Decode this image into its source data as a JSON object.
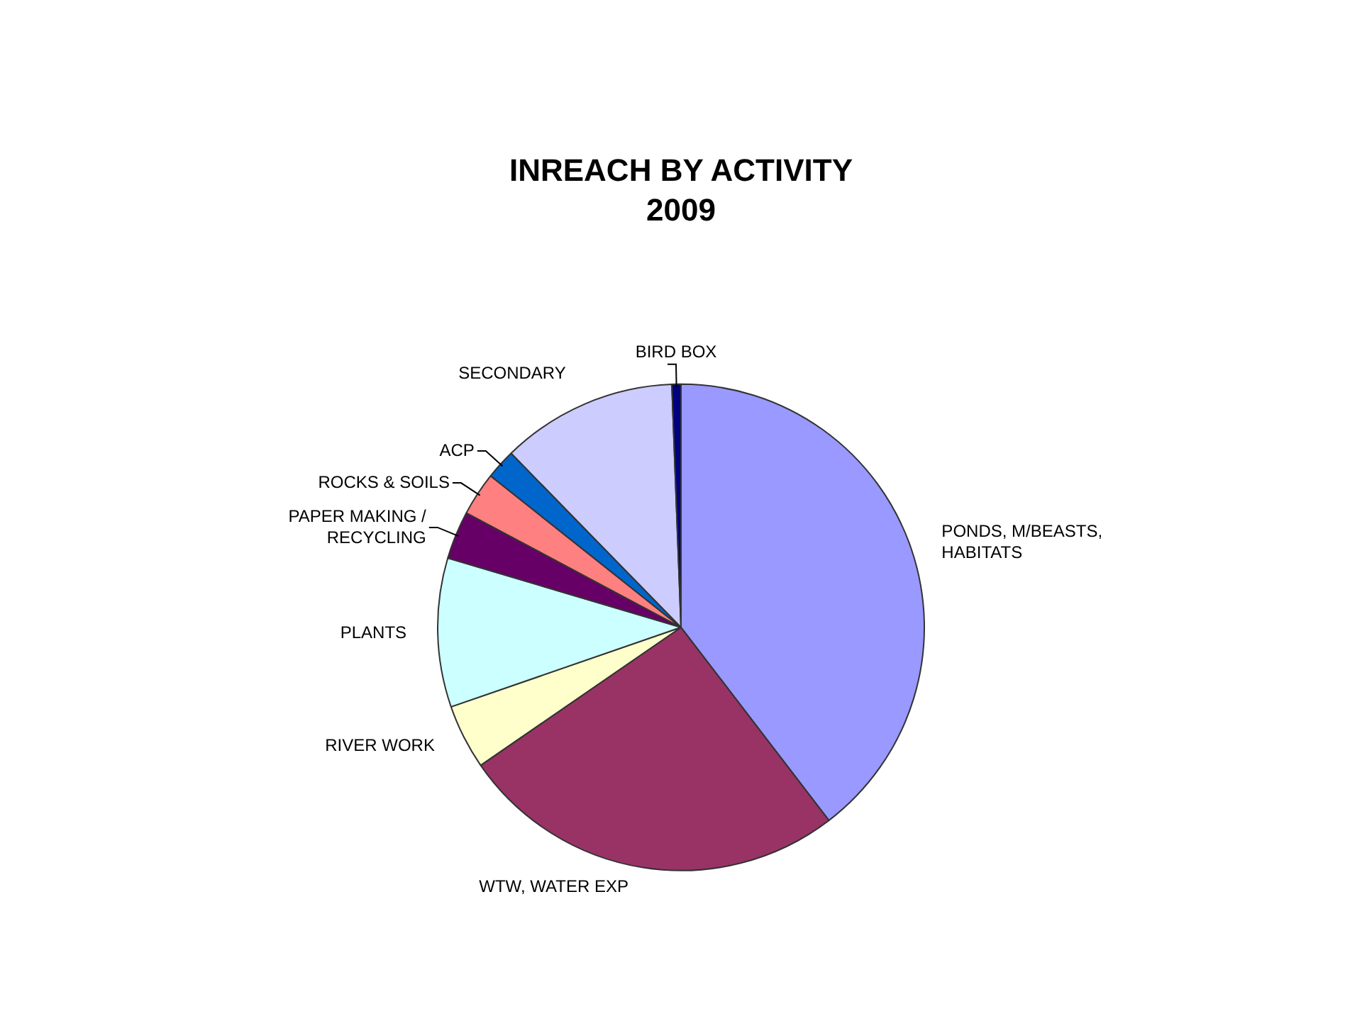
{
  "chart_data": {
    "type": "pie",
    "title": "INREACH BY ACTIVITY",
    "subtitle": "2009",
    "categories": [
      "PONDS, M/BEASTS, HABITATS",
      "WTW, WATER EXP",
      "RIVER WORK",
      "PLANTS",
      "PAPER MAKING / RECYCLING",
      "ROCKS & SOILS",
      "ACP",
      "SECONDARY",
      "BIRD BOX"
    ],
    "values": [
      39.6,
      25.8,
      4.3,
      9.9,
      3.2,
      2.9,
      2.0,
      11.7,
      0.6
    ],
    "colors": [
      "#9999ff",
      "#993366",
      "#ffffcc",
      "#ccffff",
      "#660066",
      "#ff8080",
      "#0066cc",
      "#ccccff",
      "#000080"
    ],
    "legend": false
  }
}
